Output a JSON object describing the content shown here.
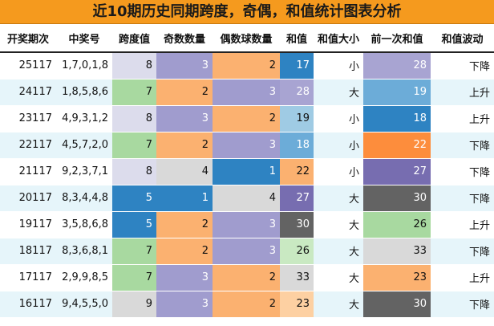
{
  "title": "近10期历史同期跨度，奇偶，和值统计图表分析",
  "headers": [
    "开奖期次",
    "中奖号",
    "跨度值",
    "奇数数量",
    "偶数球数量",
    "和值",
    "和值大小",
    "前一次和值",
    "和值波动"
  ],
  "rows": [
    {
      "period": "25117",
      "numbers": "1,7,0,1,8",
      "span": "8",
      "odd": "3",
      "even": "2",
      "sum": "17",
      "size": "小",
      "prev_sum": "28",
      "trend": "下降",
      "colors": {
        "span": "#dcdcec",
        "odd": "#a09cce",
        "even": "#fbb170",
        "sum": "#2e83c2",
        "prev_sum": "#a8a4d2"
      }
    },
    {
      "period": "24117",
      "numbers": "1,8,5,8,6",
      "span": "7",
      "odd": "2",
      "even": "3",
      "sum": "28",
      "size": "大",
      "prev_sum": "19",
      "trend": "上升",
      "colors": {
        "span": "#a8d9a0",
        "odd": "#fbb170",
        "even": "#a09cce",
        "sum": "#a8a4d2",
        "prev_sum": "#6cacd8"
      }
    },
    {
      "period": "23117",
      "numbers": "4,9,3,1,2",
      "span": "8",
      "odd": "3",
      "even": "2",
      "sum": "19",
      "size": "小",
      "prev_sum": "18",
      "trend": "上升",
      "colors": {
        "span": "#dcdcec",
        "odd": "#a09cce",
        "even": "#fbb170",
        "sum": "#9fcbe4",
        "prev_sum": "#2e83c2"
      }
    },
    {
      "period": "22117",
      "numbers": "4,5,7,2,0",
      "span": "7",
      "odd": "2",
      "even": "3",
      "sum": "18",
      "size": "小",
      "prev_sum": "22",
      "trend": "下降",
      "colors": {
        "span": "#a8d9a0",
        "odd": "#fbb170",
        "even": "#a09cce",
        "sum": "#6cacd8",
        "prev_sum": "#fd8d3c"
      }
    },
    {
      "period": "21117",
      "numbers": "9,2,3,7,1",
      "span": "8",
      "odd": "4",
      "even": "1",
      "sum": "22",
      "size": "小",
      "prev_sum": "27",
      "trend": "下降",
      "colors": {
        "span": "#dcdcec",
        "odd": "#d9d9d9",
        "even": "#2e83c2",
        "sum": "#fbb170",
        "prev_sum": "#776db0"
      }
    },
    {
      "period": "20117",
      "numbers": "8,3,4,4,8",
      "span": "5",
      "odd": "1",
      "even": "4",
      "sum": "27",
      "size": "大",
      "prev_sum": "30",
      "trend": "下降",
      "colors": {
        "span": "#2e83c2",
        "odd": "#2e83c2",
        "even": "#d9d9d9",
        "sum": "#776db0",
        "prev_sum": "#636363"
      }
    },
    {
      "period": "19117",
      "numbers": "3,5,8,6,8",
      "span": "5",
      "odd": "2",
      "even": "3",
      "sum": "30",
      "size": "大",
      "prev_sum": "26",
      "trend": "上升",
      "colors": {
        "span": "#2e83c2",
        "odd": "#fbb170",
        "even": "#a09cce",
        "sum": "#636363",
        "prev_sum": "#a8d9a0"
      }
    },
    {
      "period": "18117",
      "numbers": "8,3,6,8,1",
      "span": "7",
      "odd": "2",
      "even": "3",
      "sum": "26",
      "size": "大",
      "prev_sum": "33",
      "trend": "下降",
      "colors": {
        "span": "#a8d9a0",
        "odd": "#fbb170",
        "even": "#a09cce",
        "sum": "#c9e9c2",
        "prev_sum": "#d9d9d9"
      }
    },
    {
      "period": "17117",
      "numbers": "2,9,9,8,5",
      "span": "7",
      "odd": "3",
      "even": "2",
      "sum": "33",
      "size": "大",
      "prev_sum": "23",
      "trend": "上升",
      "colors": {
        "span": "#a8d9a0",
        "odd": "#a09cce",
        "even": "#fbb170",
        "sum": "#d9d9d9",
        "prev_sum": "#fbb170"
      }
    },
    {
      "period": "16117",
      "numbers": "9,4,5,5,0",
      "span": "9",
      "odd": "3",
      "even": "2",
      "sum": "23",
      "size": "大",
      "prev_sum": "30",
      "trend": "下降",
      "colors": {
        "span": "#d9d9d9",
        "odd": "#a09cce",
        "even": "#fbb170",
        "sum": "#fdd0a2",
        "prev_sum": "#636363"
      }
    }
  ]
}
